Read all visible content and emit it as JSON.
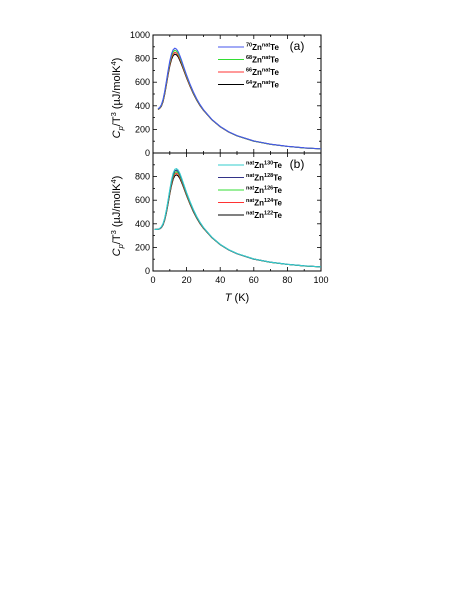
{
  "chart_data": [
    {
      "type": "line",
      "panel_label": "(a)",
      "ylabel": {
        "main": "C",
        "sub": "p",
        "mid": "/T",
        "sup": "3",
        "unit": " (µJ/molK",
        "unit_sup": "4",
        "close": ")"
      },
      "xlim": [
        0,
        100
      ],
      "ylim": [
        0,
        1000
      ],
      "yticks": [
        0,
        200,
        400,
        600,
        800,
        1000
      ],
      "x_ticklabels": "hidden",
      "grid": false,
      "legend_position": "top-right",
      "x": [
        3,
        4,
        5,
        6,
        7,
        8,
        9,
        10,
        11,
        12,
        13,
        14,
        15,
        16,
        17,
        18,
        20,
        22,
        24,
        26,
        28,
        30,
        35,
        40,
        45,
        50,
        60,
        70,
        80,
        90,
        100
      ],
      "series": [
        {
          "name": {
            "pre_sup": "70",
            "base": "Zn",
            "mid_sup": "nat",
            "tail": "Te"
          },
          "color": "#4455ee",
          "values": [
            375,
            385,
            410,
            455,
            525,
            610,
            700,
            780,
            840,
            875,
            888,
            880,
            858,
            825,
            785,
            742,
            660,
            585,
            518,
            460,
            410,
            368,
            285,
            225,
            180,
            147,
            102,
            75,
            57,
            44,
            35
          ]
        },
        {
          "name": {
            "pre_sup": "68",
            "base": "Zn",
            "mid_sup": "nat",
            "tail": "Te"
          },
          "color": "#33dd33",
          "values": [
            372,
            382,
            405,
            448,
            517,
            600,
            688,
            766,
            824,
            858,
            870,
            863,
            843,
            811,
            773,
            732,
            652,
            579,
            513,
            456,
            407,
            366,
            284,
            224,
            179,
            146,
            101,
            74,
            56,
            43,
            35
          ]
        },
        {
          "name": {
            "pre_sup": "66",
            "base": "Zn",
            "mid_sup": "nat",
            "tail": "Te"
          },
          "color": "#ff3333",
          "values": [
            370,
            380,
            400,
            442,
            508,
            590,
            676,
            752,
            808,
            842,
            853,
            847,
            828,
            797,
            762,
            722,
            644,
            572,
            508,
            452,
            404,
            364,
            283,
            223,
            178,
            146,
            101,
            74,
            56,
            43,
            35
          ]
        },
        {
          "name": {
            "pre_sup": "64",
            "base": "Zn",
            "mid_sup": "nat",
            "tail": "Te"
          },
          "color": "#000000",
          "values": [
            368,
            378,
            396,
            436,
            500,
            580,
            664,
            738,
            793,
            826,
            838,
            832,
            814,
            784,
            750,
            712,
            636,
            566,
            503,
            448,
            401,
            362,
            282,
            222,
            178,
            145,
            100,
            74,
            56,
            43,
            35
          ]
        }
      ]
    },
    {
      "type": "line",
      "panel_label": "(b)",
      "ylabel": {
        "main": "C",
        "sub": "p",
        "mid": "/T",
        "sup": "3",
        "unit": " (µJ/molK",
        "unit_sup": "4",
        "close": ")"
      },
      "xlabel": {
        "main": "T",
        "unit": "  (K)"
      },
      "xlim": [
        0,
        100
      ],
      "ylim": [
        0,
        1000
      ],
      "yticks": [
        0,
        200,
        400,
        600,
        800
      ],
      "xticks": [
        0,
        20,
        40,
        60,
        80,
        100
      ],
      "grid": false,
      "legend_position": "top-right",
      "x": [
        1,
        2,
        3,
        4,
        5,
        6,
        7,
        8,
        9,
        10,
        11,
        12,
        13,
        14,
        15,
        16,
        17,
        18,
        20,
        22,
        24,
        26,
        28,
        30,
        35,
        40,
        45,
        50,
        60,
        70,
        80,
        90,
        100
      ],
      "series": [
        {
          "name": {
            "pre_sup": "nat",
            "base": "Zn",
            "mid_sup": "130",
            "tail": "Te"
          },
          "color": "#33cccc",
          "values": [
            352,
            352,
            354,
            360,
            375,
            402,
            450,
            520,
            602,
            690,
            770,
            830,
            862,
            868,
            855,
            828,
            790,
            748,
            665,
            590,
            522,
            463,
            413,
            370,
            287,
            226,
            181,
            148,
            102,
            75,
            57,
            44,
            35
          ]
        },
        {
          "name": {
            "pre_sup": "nat",
            "base": "Zn",
            "mid_sup": "128",
            "tail": "Te"
          },
          "color": "#333388",
          "values": [
            352,
            352,
            354,
            359,
            373,
            399,
            445,
            514,
            594,
            680,
            758,
            817,
            848,
            855,
            843,
            817,
            780,
            740,
            658,
            584,
            517,
            459,
            410,
            368,
            286,
            225,
            180,
            147,
            101,
            75,
            57,
            44,
            35
          ]
        },
        {
          "name": {
            "pre_sup": "nat",
            "base": "Zn",
            "mid_sup": "126",
            "tail": "Te"
          },
          "color": "#33dd33",
          "values": [
            352,
            352,
            354,
            359,
            372,
            397,
            441,
            508,
            587,
            671,
            747,
            804,
            835,
            842,
            831,
            806,
            771,
            732,
            651,
            578,
            512,
            455,
            407,
            366,
            285,
            224,
            180,
            147,
            101,
            74,
            56,
            43,
            35
          ]
        },
        {
          "name": {
            "pre_sup": "nat",
            "base": "Zn",
            "mid_sup": "124",
            "tail": "Te"
          },
          "color": "#ff3333",
          "values": [
            352,
            352,
            353,
            358,
            370,
            394,
            437,
            502,
            580,
            662,
            736,
            792,
            822,
            829,
            819,
            795,
            762,
            724,
            645,
            573,
            508,
            452,
            404,
            364,
            284,
            224,
            179,
            146,
            101,
            74,
            56,
            43,
            35
          ]
        },
        {
          "name": {
            "pre_sup": "nat",
            "base": "Zn",
            "mid_sup": "122",
            "tail": "Te"
          },
          "color": "#000000",
          "values": [
            352,
            352,
            353,
            357,
            368,
            391,
            432,
            495,
            572,
            652,
            724,
            779,
            808,
            815,
            806,
            784,
            752,
            716,
            638,
            567,
            503,
            448,
            401,
            362,
            283,
            223,
            179,
            146,
            100,
            74,
            56,
            43,
            35
          ]
        }
      ]
    }
  ]
}
